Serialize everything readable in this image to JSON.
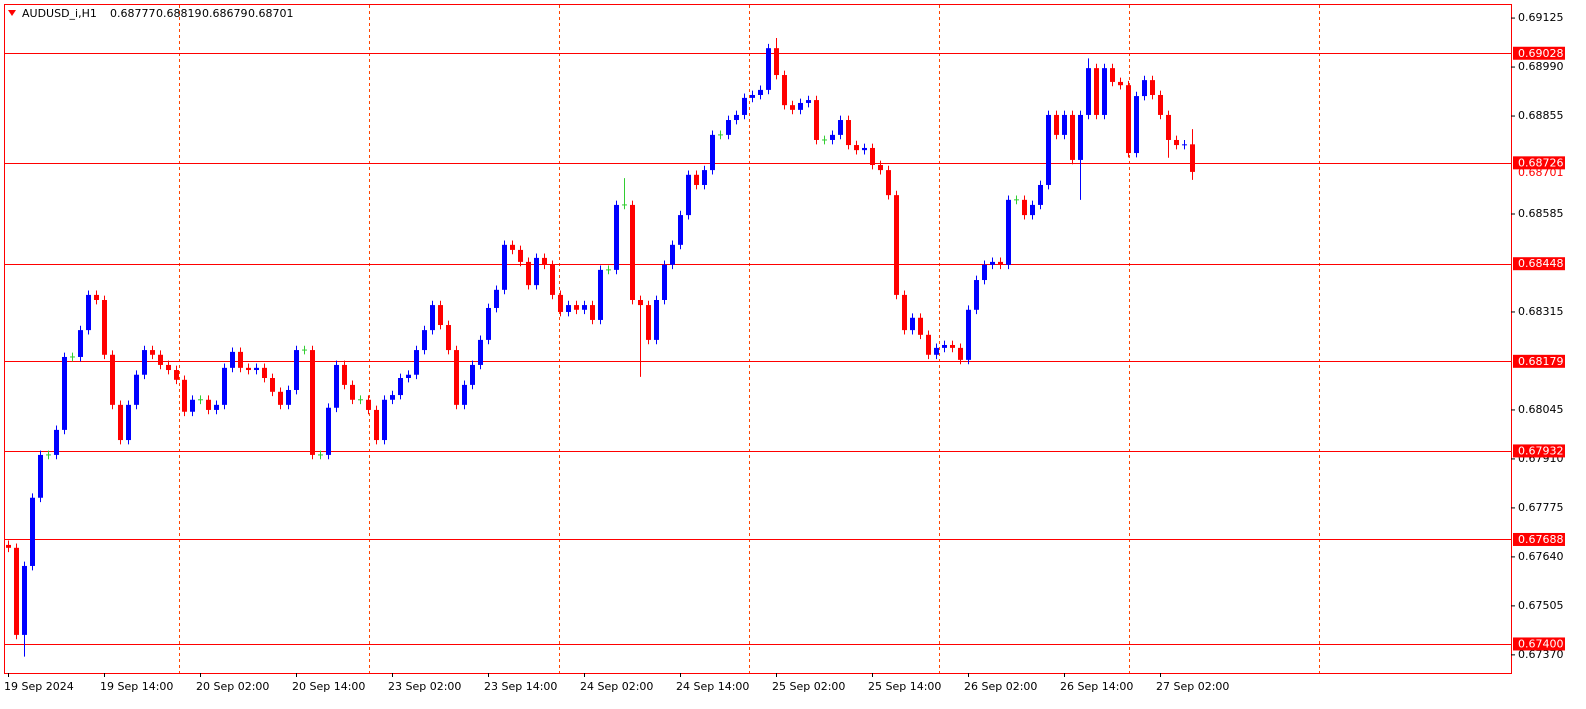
{
  "chart_data": {
    "type": "candlestick",
    "symbol": "AUDUSD_i,H1",
    "up_color": "#0000ff",
    "down_color": "#ff0000",
    "doji_color": "#32cd32",
    "level_color": "#ff0000",
    "ylim": [
      0.6732,
      0.69161
    ],
    "yticks": [
      0.69125,
      {
        "value": 0.6899,
        "label": "0.68990"
      },
      0.68855,
      0.68585,
      0.68315,
      0.68045,
      {
        "value": 0.6791,
        "label": "0.67910"
      },
      0.67775,
      {
        "value": 0.6764,
        "label": "0.67640"
      },
      0.67505,
      {
        "value": 0.6737,
        "label": "0.67370"
      }
    ],
    "levels": [
      0.69028,
      0.68726,
      0.68448,
      0.68179,
      0.67932,
      0.67688,
      {
        "value": 0.674,
        "label": "0.67400"
      }
    ],
    "categories": [
      "19 Sep 2024",
      null,
      null,
      null,
      null,
      null,
      null,
      null,
      null,
      null,
      null,
      null,
      "19 Sep 14:00",
      null,
      null,
      null,
      null,
      null,
      null,
      null,
      null,
      null,
      null,
      null,
      "20 Sep 02:00",
      null,
      null,
      null,
      null,
      null,
      null,
      null,
      null,
      null,
      null,
      null,
      "20 Sep 14:00",
      null,
      null,
      null,
      null,
      null,
      null,
      null,
      null,
      null,
      null,
      null,
      "23 Sep 02:00",
      null,
      null,
      null,
      null,
      null,
      null,
      null,
      null,
      null,
      null,
      null,
      "23 Sep 14:00",
      null,
      null,
      null,
      null,
      null,
      null,
      null,
      null,
      null,
      null,
      null,
      "24 Sep 02:00",
      null,
      null,
      null,
      null,
      null,
      null,
      null,
      null,
      null,
      null,
      null,
      "24 Sep 14:00",
      null,
      null,
      null,
      null,
      null,
      null,
      null,
      null,
      null,
      null,
      null,
      "25 Sep 02:00",
      null,
      null,
      null,
      null,
      null,
      null,
      null,
      null,
      null,
      null,
      null,
      "25 Sep 14:00",
      null,
      null,
      null,
      null,
      null,
      null,
      null,
      null,
      null,
      null,
      null,
      "26 Sep 02:00",
      null,
      null,
      null,
      null,
      null,
      null,
      null,
      null,
      null,
      null,
      null,
      "26 Sep 14:00",
      null,
      null,
      null,
      null,
      null,
      null,
      null,
      null,
      null,
      null,
      null,
      "27 Sep 02:00",
      null,
      null,
      null,
      null
    ],
    "open": [
      0.67673,
      0.67665,
      0.67425,
      0.67615,
      0.67803,
      0.67921,
      0.67921,
      0.6799,
      0.68191,
      0.68191,
      0.68265,
      0.68362,
      0.68348,
      0.68197,
      0.68059,
      0.67962,
      0.68059,
      0.68142,
      0.6821,
      0.68197,
      0.68169,
      0.68155,
      0.68128,
      0.6804,
      0.68073,
      0.68073,
      0.68045,
      0.68059,
      0.68161,
      0.68205,
      0.68161,
      0.68155,
      0.68161,
      0.68133,
      0.68095,
      0.68059,
      0.681,
      0.6821,
      0.6821,
      0.67921,
      0.67921,
      0.68051,
      0.68169,
      0.68114,
      0.68073,
      0.68073,
      0.68045,
      0.67962,
      0.68073,
      0.68086,
      0.68133,
      0.68142,
      0.6821,
      0.68265,
      0.68334,
      0.68279,
      0.6821,
      0.68059,
      0.68114,
      0.68169,
      0.68238,
      0.68326,
      0.68376,
      0.685,
      0.68486,
      0.68453,
      0.68389,
      0.68464,
      0.68445,
      0.68362,
      0.68315,
      0.68334,
      0.68321,
      0.68334,
      0.68293,
      0.68431,
      0.68431,
      0.6861,
      0.6861,
      0.68348,
      0.68334,
      0.68238,
      0.68348,
      0.68445,
      0.685,
      0.68582,
      0.68693,
      0.68665,
      0.68706,
      0.68803,
      0.68803,
      0.68844,
      0.68858,
      0.68905,
      0.68913,
      0.68927,
      0.69042,
      0.68968,
      0.68885,
      0.68872,
      0.68891,
      0.68899,
      0.68789,
      0.68789,
      0.68803,
      0.68844,
      0.68775,
      0.68761,
      0.68767,
      0.6872,
      0.68706,
      0.68637,
      0.68362,
      0.68265,
      0.68299,
      0.68252,
      0.68197,
      0.68216,
      0.68224,
      0.68216,
      0.68183,
      0.68321,
      0.68403,
      0.68445,
      0.68453,
      0.68445,
      0.68624,
      0.68624,
      0.68582,
      0.6861,
      0.68665,
      0.68858,
      0.68803,
      0.68858,
      0.68734,
      0.68858,
      0.68987,
      0.68858,
      0.68987,
      0.68949,
      0.6894,
      0.68753,
      0.6891,
      0.68954,
      0.68913,
      0.68858,
      0.68789,
      0.68775,
      0.68777
    ],
    "high": [
      0.67685,
      0.67677,
      0.67627,
      0.67815,
      0.67933,
      0.67933,
      0.68002,
      0.68203,
      0.68203,
      0.68277,
      0.68374,
      0.68374,
      0.6836,
      0.68209,
      0.68071,
      0.68071,
      0.68154,
      0.68222,
      0.68222,
      0.68209,
      0.68181,
      0.68167,
      0.6814,
      0.68085,
      0.68085,
      0.68085,
      0.68071,
      0.68173,
      0.68217,
      0.68217,
      0.68173,
      0.68173,
      0.68173,
      0.68145,
      0.68107,
      0.68112,
      0.68222,
      0.68222,
      0.68222,
      0.67933,
      0.68063,
      0.68181,
      0.68181,
      0.68126,
      0.68085,
      0.68085,
      0.68057,
      0.68085,
      0.68098,
      0.68145,
      0.68154,
      0.68222,
      0.68277,
      0.68346,
      0.68346,
      0.68291,
      0.68222,
      0.68126,
      0.68181,
      0.6825,
      0.68338,
      0.68388,
      0.68512,
      0.68512,
      0.68498,
      0.68465,
      0.68476,
      0.68476,
      0.68457,
      0.68374,
      0.68346,
      0.68346,
      0.68346,
      0.68346,
      0.68443,
      0.68443,
      0.68622,
      0.68684,
      0.68622,
      0.6836,
      0.68346,
      0.6836,
      0.68457,
      0.68512,
      0.68594,
      0.68705,
      0.68705,
      0.68718,
      0.68815,
      0.68815,
      0.68856,
      0.6887,
      0.68917,
      0.68925,
      0.68939,
      0.69054,
      0.6907,
      0.6898,
      0.68897,
      0.68903,
      0.68911,
      0.68911,
      0.68801,
      0.68815,
      0.68856,
      0.68856,
      0.68787,
      0.68779,
      0.68779,
      0.68732,
      0.68718,
      0.68649,
      0.68374,
      0.68311,
      0.68311,
      0.68264,
      0.68228,
      0.68236,
      0.68236,
      0.68228,
      0.68333,
      0.68415,
      0.68457,
      0.68465,
      0.68465,
      0.68636,
      0.68636,
      0.68636,
      0.68622,
      0.68677,
      0.6887,
      0.6887,
      0.6887,
      0.6887,
      0.6887,
      0.69014,
      0.68999,
      0.68999,
      0.68999,
      0.68961,
      0.68952,
      0.68922,
      0.68966,
      0.68966,
      0.68925,
      0.6887,
      0.68801,
      0.68789,
      0.68819
    ],
    "low": [
      0.67653,
      0.67413,
      0.67365,
      0.67603,
      0.67791,
      0.67909,
      0.67909,
      0.67978,
      0.68179,
      0.68179,
      0.68253,
      0.68336,
      0.68185,
      0.68047,
      0.6795,
      0.6795,
      0.68047,
      0.6813,
      0.68185,
      0.68157,
      0.68143,
      0.68116,
      0.68028,
      0.68028,
      0.68061,
      0.68033,
      0.68033,
      0.68047,
      0.68149,
      0.68149,
      0.68143,
      0.68143,
      0.68121,
      0.68083,
      0.68047,
      0.68047,
      0.68088,
      0.68198,
      0.67909,
      0.67909,
      0.67909,
      0.68039,
      0.68102,
      0.68061,
      0.68061,
      0.68033,
      0.6795,
      0.6795,
      0.68061,
      0.68074,
      0.68121,
      0.6813,
      0.68198,
      0.68253,
      0.68267,
      0.68198,
      0.68047,
      0.68047,
      0.68102,
      0.68157,
      0.68226,
      0.68314,
      0.68364,
      0.68474,
      0.68441,
      0.68377,
      0.68377,
      0.68433,
      0.6835,
      0.68303,
      0.68303,
      0.68309,
      0.68309,
      0.68281,
      0.68281,
      0.68419,
      0.68419,
      0.68598,
      0.68336,
      0.68136,
      0.68226,
      0.68226,
      0.68336,
      0.68433,
      0.68488,
      0.6857,
      0.68653,
      0.68653,
      0.68694,
      0.68791,
      0.68791,
      0.68832,
      0.68846,
      0.68893,
      0.68901,
      0.68915,
      0.68956,
      0.68873,
      0.6886,
      0.6886,
      0.68879,
      0.68777,
      0.68777,
      0.68777,
      0.68791,
      0.68763,
      0.68749,
      0.68749,
      0.68708,
      0.68694,
      0.68625,
      0.6835,
      0.68253,
      0.68253,
      0.6824,
      0.68185,
      0.68185,
      0.68204,
      0.68204,
      0.68171,
      0.68171,
      0.68309,
      0.68391,
      0.68433,
      0.68433,
      0.68433,
      0.68612,
      0.6857,
      0.6857,
      0.68598,
      0.68653,
      0.68791,
      0.68791,
      0.68722,
      0.68624,
      0.68846,
      0.68846,
      0.68846,
      0.68937,
      0.68928,
      0.68741,
      0.68741,
      0.68898,
      0.68901,
      0.68846,
      0.6874,
      0.68763,
      0.68763,
      0.68679
    ],
    "close": [
      0.67665,
      0.67425,
      0.67615,
      0.67803,
      0.67921,
      0.67921,
      0.6799,
      0.68191,
      0.68191,
      0.68265,
      0.68362,
      0.68348,
      0.68197,
      0.68059,
      0.67962,
      0.68059,
      0.68142,
      0.6821,
      0.68197,
      0.68169,
      0.68155,
      0.68128,
      0.6804,
      0.68073,
      0.68073,
      0.68045,
      0.68059,
      0.68161,
      0.68205,
      0.68161,
      0.68155,
      0.68161,
      0.68133,
      0.68095,
      0.68059,
      0.681,
      0.6821,
      0.6821,
      0.67921,
      0.67921,
      0.68051,
      0.68169,
      0.68114,
      0.68073,
      0.68073,
      0.68045,
      0.67962,
      0.68073,
      0.68086,
      0.68133,
      0.68142,
      0.6821,
      0.68265,
      0.68334,
      0.68279,
      0.6821,
      0.68059,
      0.68114,
      0.68169,
      0.68238,
      0.68326,
      0.68376,
      0.685,
      0.68486,
      0.68453,
      0.68389,
      0.68464,
      0.68445,
      0.68362,
      0.68315,
      0.68334,
      0.68321,
      0.68334,
      0.68293,
      0.68431,
      0.68431,
      0.6861,
      0.6861,
      0.68348,
      0.68334,
      0.68238,
      0.68348,
      0.68445,
      0.685,
      0.68582,
      0.68693,
      0.68665,
      0.68706,
      0.68803,
      0.68803,
      0.68844,
      0.68858,
      0.68905,
      0.68913,
      0.68927,
      0.69042,
      0.68968,
      0.68885,
      0.68872,
      0.68891,
      0.68899,
      0.68789,
      0.68789,
      0.68803,
      0.68844,
      0.68775,
      0.68761,
      0.68767,
      0.6872,
      0.68706,
      0.68637,
      0.68362,
      0.68265,
      0.68299,
      0.68252,
      0.68197,
      0.68216,
      0.68224,
      0.68216,
      0.68183,
      0.68321,
      0.68403,
      0.68445,
      0.68453,
      0.68445,
      0.68624,
      0.68624,
      0.68582,
      0.6861,
      0.68665,
      0.68858,
      0.68803,
      0.68858,
      0.68734,
      0.68858,
      0.68987,
      0.68858,
      0.68987,
      0.68949,
      0.6894,
      0.68753,
      0.6891,
      0.68954,
      0.68913,
      0.68858,
      0.68789,
      0.68775,
      0.68777,
      0.68701
    ]
  }
}
